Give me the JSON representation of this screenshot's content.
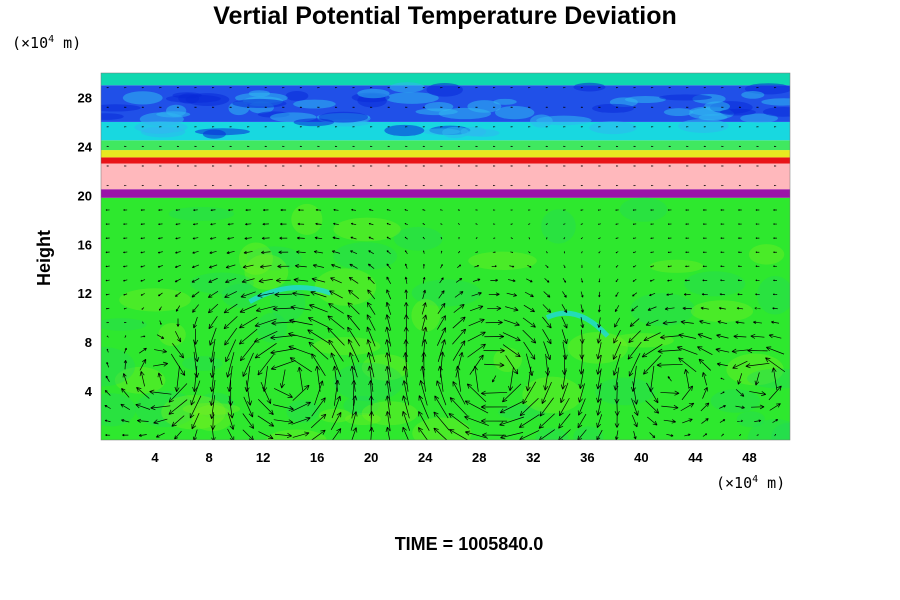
{
  "chart_data": {
    "type": "heatmap",
    "title": "Vertial Potential Temperature Deviation",
    "ylabel": "Height",
    "x_unit": {
      "prefix": "(×10",
      "exp": "4",
      "suffix": " m)"
    },
    "y_unit": {
      "prefix": "(×10",
      "exp": "4",
      "suffix": " m)"
    },
    "xlim": [
      0,
      51
    ],
    "ylim": [
      0,
      30
    ],
    "x_ticks": [
      4,
      8,
      12,
      16,
      20,
      24,
      28,
      32,
      36,
      40,
      44,
      48
    ],
    "y_ticks": [
      4,
      8,
      12,
      16,
      20,
      24,
      28
    ],
    "x_tick_labels": [
      "4",
      "8",
      "12",
      "16",
      "20",
      "24",
      "28",
      "32",
      "36",
      "40",
      "44",
      "48"
    ],
    "y_tick_labels": [
      "4",
      "8",
      "12",
      "16",
      "20",
      "24",
      "28"
    ],
    "layers": [
      {
        "name": "lower",
        "y_range": [
          0,
          19.8
        ],
        "color": "#2ee82e"
      },
      {
        "name": "purple",
        "y_range": [
          19.8,
          20.5
        ],
        "color": "#9a14a8"
      },
      {
        "name": "pink",
        "y_range": [
          20.5,
          22.6
        ],
        "color": "#ffb8bc"
      },
      {
        "name": "red",
        "y_range": [
          22.6,
          23.1
        ],
        "color": "#e81418"
      },
      {
        "name": "yellow",
        "y_range": [
          23.1,
          23.7
        ],
        "color": "#e8e820"
      },
      {
        "name": "green-upper",
        "y_range": [
          23.7,
          24.5
        ],
        "color": "#40e860"
      },
      {
        "name": "cyan-upper",
        "y_range": [
          24.5,
          26.0
        ],
        "color": "#18d8e0"
      },
      {
        "name": "blue-upper",
        "y_range": [
          26.0,
          29.0
        ],
        "color": "#2050e8"
      },
      {
        "name": "top-teal",
        "y_range": [
          29.0,
          30.0
        ],
        "color": "#10d8b0"
      }
    ],
    "vortex_centers": [
      {
        "x": 14,
        "y": 5,
        "r": 6
      },
      {
        "x": 29,
        "y": 5,
        "r": 6
      },
      {
        "x": 42,
        "y": 5,
        "r": 3.5
      },
      {
        "x": 5,
        "y": 5,
        "r": 3
      },
      {
        "x": 49,
        "y": 5,
        "r": 2.5
      }
    ]
  },
  "caption": {
    "time": "TIME = 1005840.0"
  }
}
